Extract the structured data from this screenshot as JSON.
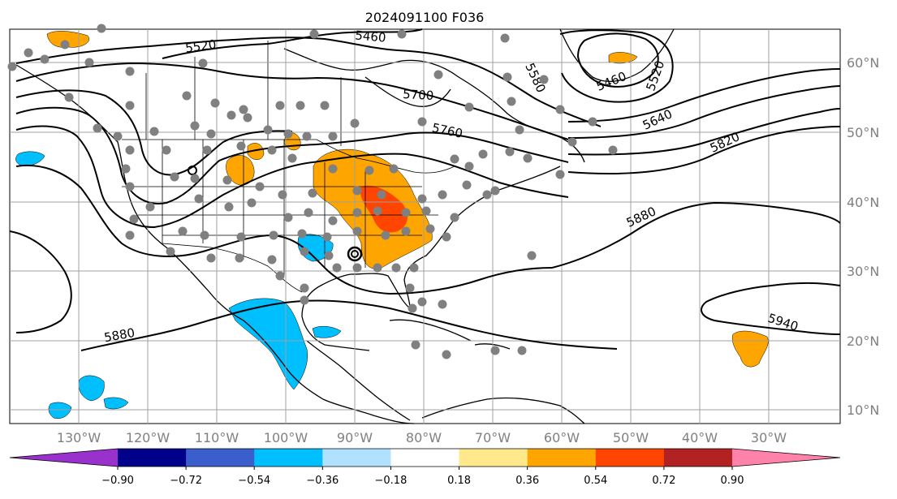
{
  "title": "2024091100 F036",
  "longitude_labels": [
    "130°W",
    "120°W",
    "110°W",
    "100°W",
    "90°W",
    "80°W",
    "70°W",
    "60°W",
    "50°W",
    "40°W",
    "30°W"
  ],
  "latitude_labels": [
    "60°N",
    "50°N",
    "40°N",
    "30°N",
    "20°N",
    "10°N"
  ],
  "contour_labels": [
    {
      "text": "5520"
    },
    {
      "text": "5460"
    },
    {
      "text": "5700"
    },
    {
      "text": "5760"
    },
    {
      "text": "5460"
    },
    {
      "text": "5520"
    },
    {
      "text": "5580"
    },
    {
      "text": "5640"
    },
    {
      "text": "5820"
    },
    {
      "text": "5880"
    },
    {
      "text": "5880"
    },
    {
      "text": "5940"
    }
  ],
  "colorbar": {
    "tick_labels": [
      "−0.90",
      "−0.72",
      "−0.54",
      "−0.36",
      "−0.18",
      "0.18",
      "0.36",
      "0.54",
      "0.72",
      "0.90"
    ],
    "colors": [
      "#9932cc",
      "#00008b",
      "#3a5fcd",
      "#00bfff",
      "#b0e2ff",
      "#ffffff",
      "#ffe98a",
      "#ffa500",
      "#ff4500",
      "#b22222",
      "#ff82ab"
    ]
  },
  "colors": {
    "positive_moderate": "#ffa500",
    "positive_strong": "#ff4500",
    "negative_moderate": "#00bfff",
    "station_marker": "#808080"
  }
}
